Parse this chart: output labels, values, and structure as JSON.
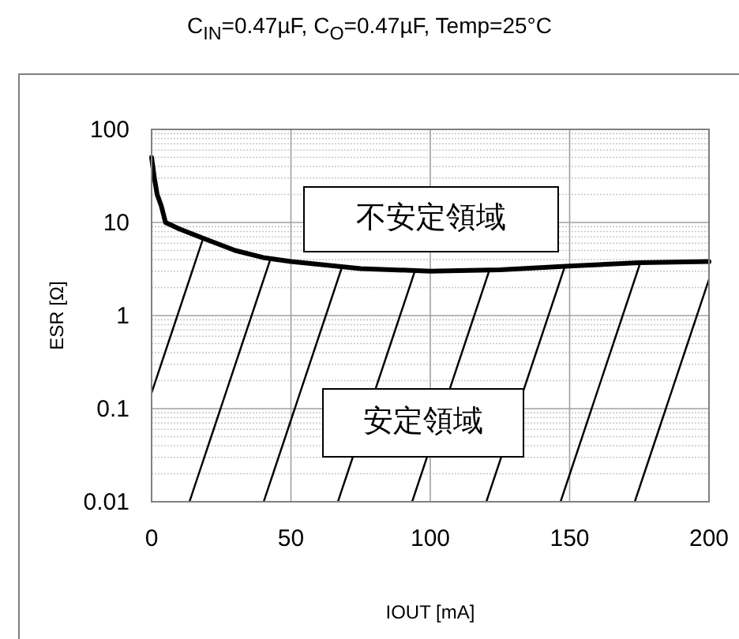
{
  "chart_data": {
    "type": "line",
    "title": "C$_{IN}$=0.47µF, C$_{O}$=0.47µF, Temp=25°C",
    "xlabel": "IOUT [mA]",
    "ylabel": "ESR [Ω]",
    "annotations": [
      "不安定領域",
      "安定領域"
    ],
    "series": [
      {
        "color": "#000000",
        "x": [
          0,
          1,
          2,
          3.5,
          5,
          10,
          20,
          30,
          40,
          50,
          75,
          100,
          125,
          150,
          175,
          200
        ],
        "values": [
          50,
          30,
          20,
          15,
          10,
          8.5,
          6.5,
          5,
          4.2,
          3.8,
          3.2,
          3.0,
          3.1,
          3.4,
          3.7,
          3.8
        ]
      }
    ],
    "xlim": [
      0,
      200
    ],
    "xticks": [
      0,
      50,
      100,
      150,
      200
    ],
    "ylim": [
      0.01,
      100
    ],
    "yticks": [
      0.01,
      0.1,
      1,
      10,
      100
    ],
    "log": "y",
    "grid": true,
    "marker": "none",
    "line_style": "solid"
  }
}
